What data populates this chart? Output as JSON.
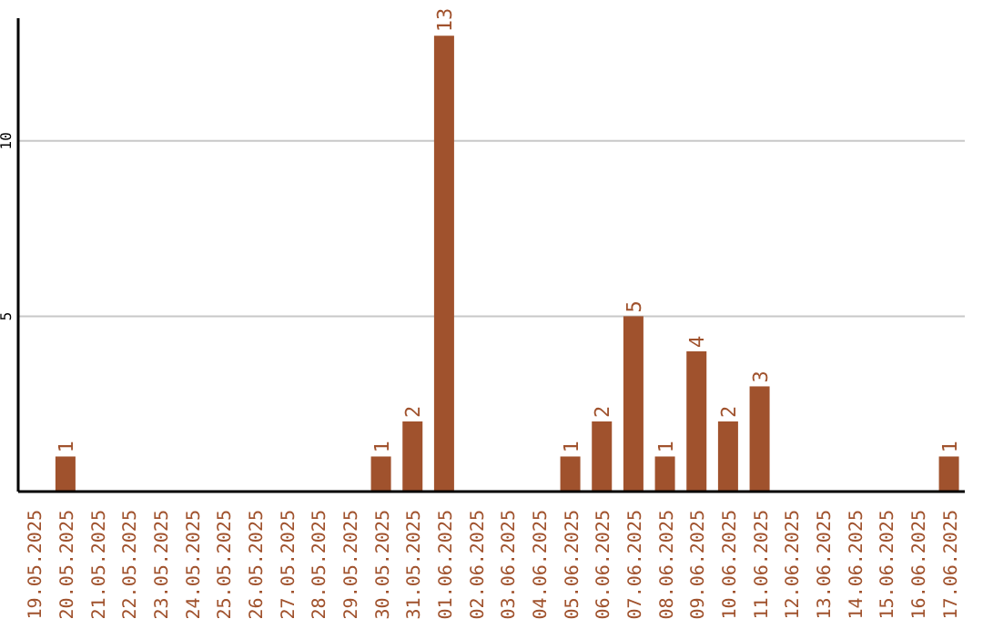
{
  "chart_data": {
    "type": "bar",
    "categories": [
      "19.05.2025",
      "20.05.2025",
      "21.05.2025",
      "22.05.2025",
      "23.05.2025",
      "24.05.2025",
      "25.05.2025",
      "26.05.2025",
      "27.05.2025",
      "28.05.2025",
      "29.05.2025",
      "30.05.2025",
      "31.05.2025",
      "01.06.2025",
      "02.06.2025",
      "03.06.2025",
      "04.06.2025",
      "05.06.2025",
      "06.06.2025",
      "07.06.2025",
      "08.06.2025",
      "09.06.2025",
      "10.06.2025",
      "11.06.2025",
      "12.06.2025",
      "13.06.2025",
      "14.06.2025",
      "15.06.2025",
      "16.06.2025",
      "17.06.2025"
    ],
    "values": [
      0,
      1,
      0,
      0,
      0,
      0,
      0,
      0,
      0,
      0,
      0,
      1,
      2,
      13,
      0,
      0,
      0,
      1,
      2,
      5,
      1,
      4,
      2,
      3,
      0,
      0,
      0,
      0,
      0,
      1
    ],
    "value_labels": [
      null,
      "1",
      null,
      null,
      null,
      null,
      null,
      null,
      null,
      null,
      null,
      "1",
      "2",
      "13",
      null,
      null,
      null,
      "1",
      "2",
      "5",
      "1",
      "4",
      "2",
      "3",
      null,
      null,
      null,
      null,
      null,
      "1"
    ],
    "color": "#a0522d",
    "ylim": [
      0,
      13.5
    ],
    "yticks": [
      5,
      10
    ],
    "grid": "y"
  }
}
